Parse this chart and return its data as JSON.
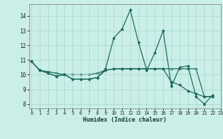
{
  "xlabel": "Humidex (Indice chaleur)",
  "background_color": "#caeee8",
  "grid_color": "#aed8d2",
  "line_color": "#1a6b5a",
  "series1_x": [
    0,
    1,
    2,
    3,
    4,
    5,
    6,
    7,
    8,
    9,
    10,
    11,
    12,
    13,
    14,
    15,
    16,
    17,
    18,
    19,
    20,
    21,
    22
  ],
  "series1_y": [
    10.9,
    10.3,
    10.1,
    9.9,
    10.0,
    9.7,
    9.7,
    9.7,
    9.8,
    10.4,
    12.5,
    13.1,
    14.4,
    12.2,
    10.3,
    11.5,
    13.0,
    9.2,
    10.5,
    10.6,
    8.5,
    8.0,
    8.6
  ],
  "series2_x": [
    0,
    1,
    2,
    3,
    4,
    5,
    6,
    7,
    8,
    9,
    10,
    11,
    12,
    13,
    14,
    15,
    16,
    17,
    18,
    19,
    20,
    21,
    22
  ],
  "series2_y": [
    10.9,
    10.3,
    10.1,
    9.9,
    10.0,
    9.7,
    9.7,
    9.7,
    9.8,
    10.3,
    10.4,
    10.4,
    10.4,
    10.4,
    10.4,
    10.4,
    10.4,
    9.5,
    9.3,
    8.9,
    8.7,
    8.5,
    8.5
  ],
  "series3_x": [
    0,
    1,
    2,
    3,
    4,
    5,
    6,
    7,
    8,
    9,
    10,
    11,
    12,
    13,
    14,
    15,
    16,
    17,
    18,
    19,
    20,
    21,
    22
  ],
  "series3_y": [
    10.9,
    10.3,
    10.2,
    10.1,
    10.0,
    10.0,
    10.0,
    10.0,
    10.1,
    10.3,
    10.4,
    10.4,
    10.4,
    10.4,
    10.4,
    10.4,
    10.4,
    10.4,
    10.4,
    10.4,
    10.4,
    8.5,
    8.5
  ],
  "ylim": [
    7.7,
    14.8
  ],
  "xlim": [
    -0.3,
    23.0
  ],
  "yticks": [
    8,
    9,
    10,
    11,
    12,
    13,
    14
  ],
  "xticks": [
    0,
    1,
    2,
    3,
    4,
    5,
    6,
    7,
    8,
    9,
    10,
    11,
    12,
    13,
    14,
    15,
    16,
    17,
    18,
    19,
    20,
    21,
    22,
    23
  ],
  "marker": "*",
  "marker_size": 2.5,
  "linewidth": 0.9
}
